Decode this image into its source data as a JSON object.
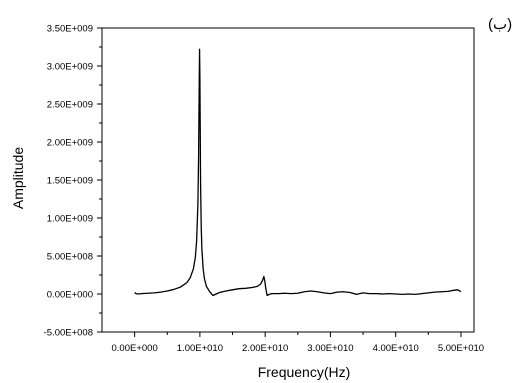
{
  "panel_label": "(ب)",
  "chart_data": {
    "type": "line",
    "title": "",
    "xlabel": "Frequency(Hz)",
    "ylabel": "Amplitude",
    "xlim": [
      -5000000000,
      52000000000
    ],
    "ylim": [
      -500000000,
      3500000000
    ],
    "x_ticks": [
      0,
      10000000000,
      20000000000,
      30000000000,
      40000000000,
      50000000000
    ],
    "x_tick_labels": [
      "0.00E+000",
      "1.00E+010",
      "2.00E+010",
      "3.00E+010",
      "4.00E+010",
      "5.00E+010"
    ],
    "y_ticks": [
      -500000000,
      0,
      500000000,
      1000000000,
      1500000000,
      2000000000,
      2500000000,
      3000000000,
      3500000000
    ],
    "y_tick_labels": [
      "-5.00E+008",
      "0.00E+000",
      "5.00E+008",
      "1.00E+009",
      "1.50E+009",
      "2.00E+009",
      "2.50E+009",
      "3.00E+009",
      "3.50E+009"
    ],
    "grid": false,
    "legend": "none",
    "line_color": "#000000",
    "series": [
      {
        "x": [
          0,
          200000000,
          500000000,
          1000000000,
          2000000000,
          3000000000,
          4000000000,
          5000000000,
          6000000000,
          7000000000,
          8000000000,
          8500000000,
          9000000000,
          9300000000,
          9500000000,
          9700000000,
          9800000000,
          9900000000,
          9950000000,
          10000000000,
          10050000000,
          10100000000,
          10200000000,
          10300000000,
          10500000000,
          10700000000,
          11000000000,
          11500000000,
          12000000000,
          12500000000,
          13000000000,
          14000000000,
          15000000000,
          16000000000,
          17000000000,
          18000000000,
          18800000000,
          19300000000,
          19600000000,
          19800000000,
          19950000000,
          20100000000,
          20300000000,
          20600000000,
          21000000000,
          22000000000,
          23000000000,
          24000000000,
          25000000000,
          26000000000,
          27000000000,
          28000000000,
          29000000000,
          30000000000,
          31000000000,
          32000000000,
          33000000000,
          34000000000,
          35000000000,
          36000000000,
          37000000000,
          38000000000,
          39000000000,
          40000000000,
          41000000000,
          42000000000,
          43000000000,
          44000000000,
          45000000000,
          46000000000,
          47000000000,
          48000000000,
          49000000000,
          49500000000,
          50000000000
        ],
        "y": [
          20000000,
          5000000,
          0,
          5000000,
          10000000,
          15000000,
          25000000,
          40000000,
          60000000,
          90000000,
          150000000,
          210000000,
          330000000,
          480000000,
          700000000,
          1200000000,
          1800000000,
          2800000000,
          3220000000,
          2850000000,
          2200000000,
          1500000000,
          900000000,
          600000000,
          330000000,
          200000000,
          100000000,
          30000000,
          -20000000,
          0,
          20000000,
          40000000,
          55000000,
          70000000,
          75000000,
          85000000,
          100000000,
          130000000,
          180000000,
          230000000,
          170000000,
          70000000,
          -20000000,
          -5000000,
          5000000,
          5000000,
          10000000,
          5000000,
          10000000,
          30000000,
          40000000,
          30000000,
          15000000,
          5000000,
          25000000,
          30000000,
          20000000,
          -5000000,
          15000000,
          5000000,
          5000000,
          0,
          5000000,
          0,
          -5000000,
          0,
          -5000000,
          5000000,
          15000000,
          25000000,
          30000000,
          35000000,
          50000000,
          55000000,
          30000000
        ]
      }
    ]
  }
}
